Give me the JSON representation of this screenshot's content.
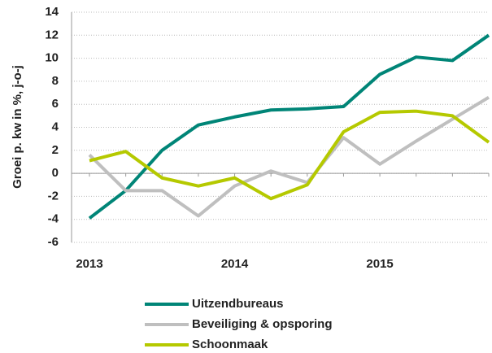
{
  "chart_data": {
    "type": "line",
    "y_label": "Groei p. kw in %, j-o-j",
    "categories": [
      "2013",
      null,
      null,
      null,
      "2014",
      null,
      null,
      null,
      "2015",
      null,
      null,
      null
    ],
    "series": [
      {
        "name": "Uitzendbureaus",
        "color": "#008577",
        "values": [
          -3.9,
          -1.5,
          2.0,
          4.2,
          4.9,
          5.5,
          5.6,
          5.8,
          8.6,
          10.1,
          9.8,
          12.0
        ]
      },
      {
        "name": "Beveiliging & opsporing",
        "color": "#bfbfbf",
        "values": [
          1.6,
          -1.5,
          -1.5,
          -3.7,
          -1.1,
          0.2,
          -0.8,
          3.1,
          0.8,
          2.8,
          4.7,
          6.6
        ]
      },
      {
        "name": "Schoonmaak",
        "color": "#b5c900",
        "values": [
          1.1,
          1.9,
          -0.4,
          -1.1,
          -0.4,
          -2.2,
          -1.0,
          3.6,
          5.3,
          5.4,
          5.0,
          2.7
        ]
      }
    ],
    "ylim": [
      -6,
      14
    ],
    "yticks": [
      -6,
      -4,
      -2,
      0,
      2,
      4,
      6,
      8,
      10,
      12,
      14
    ],
    "grid": true
  }
}
